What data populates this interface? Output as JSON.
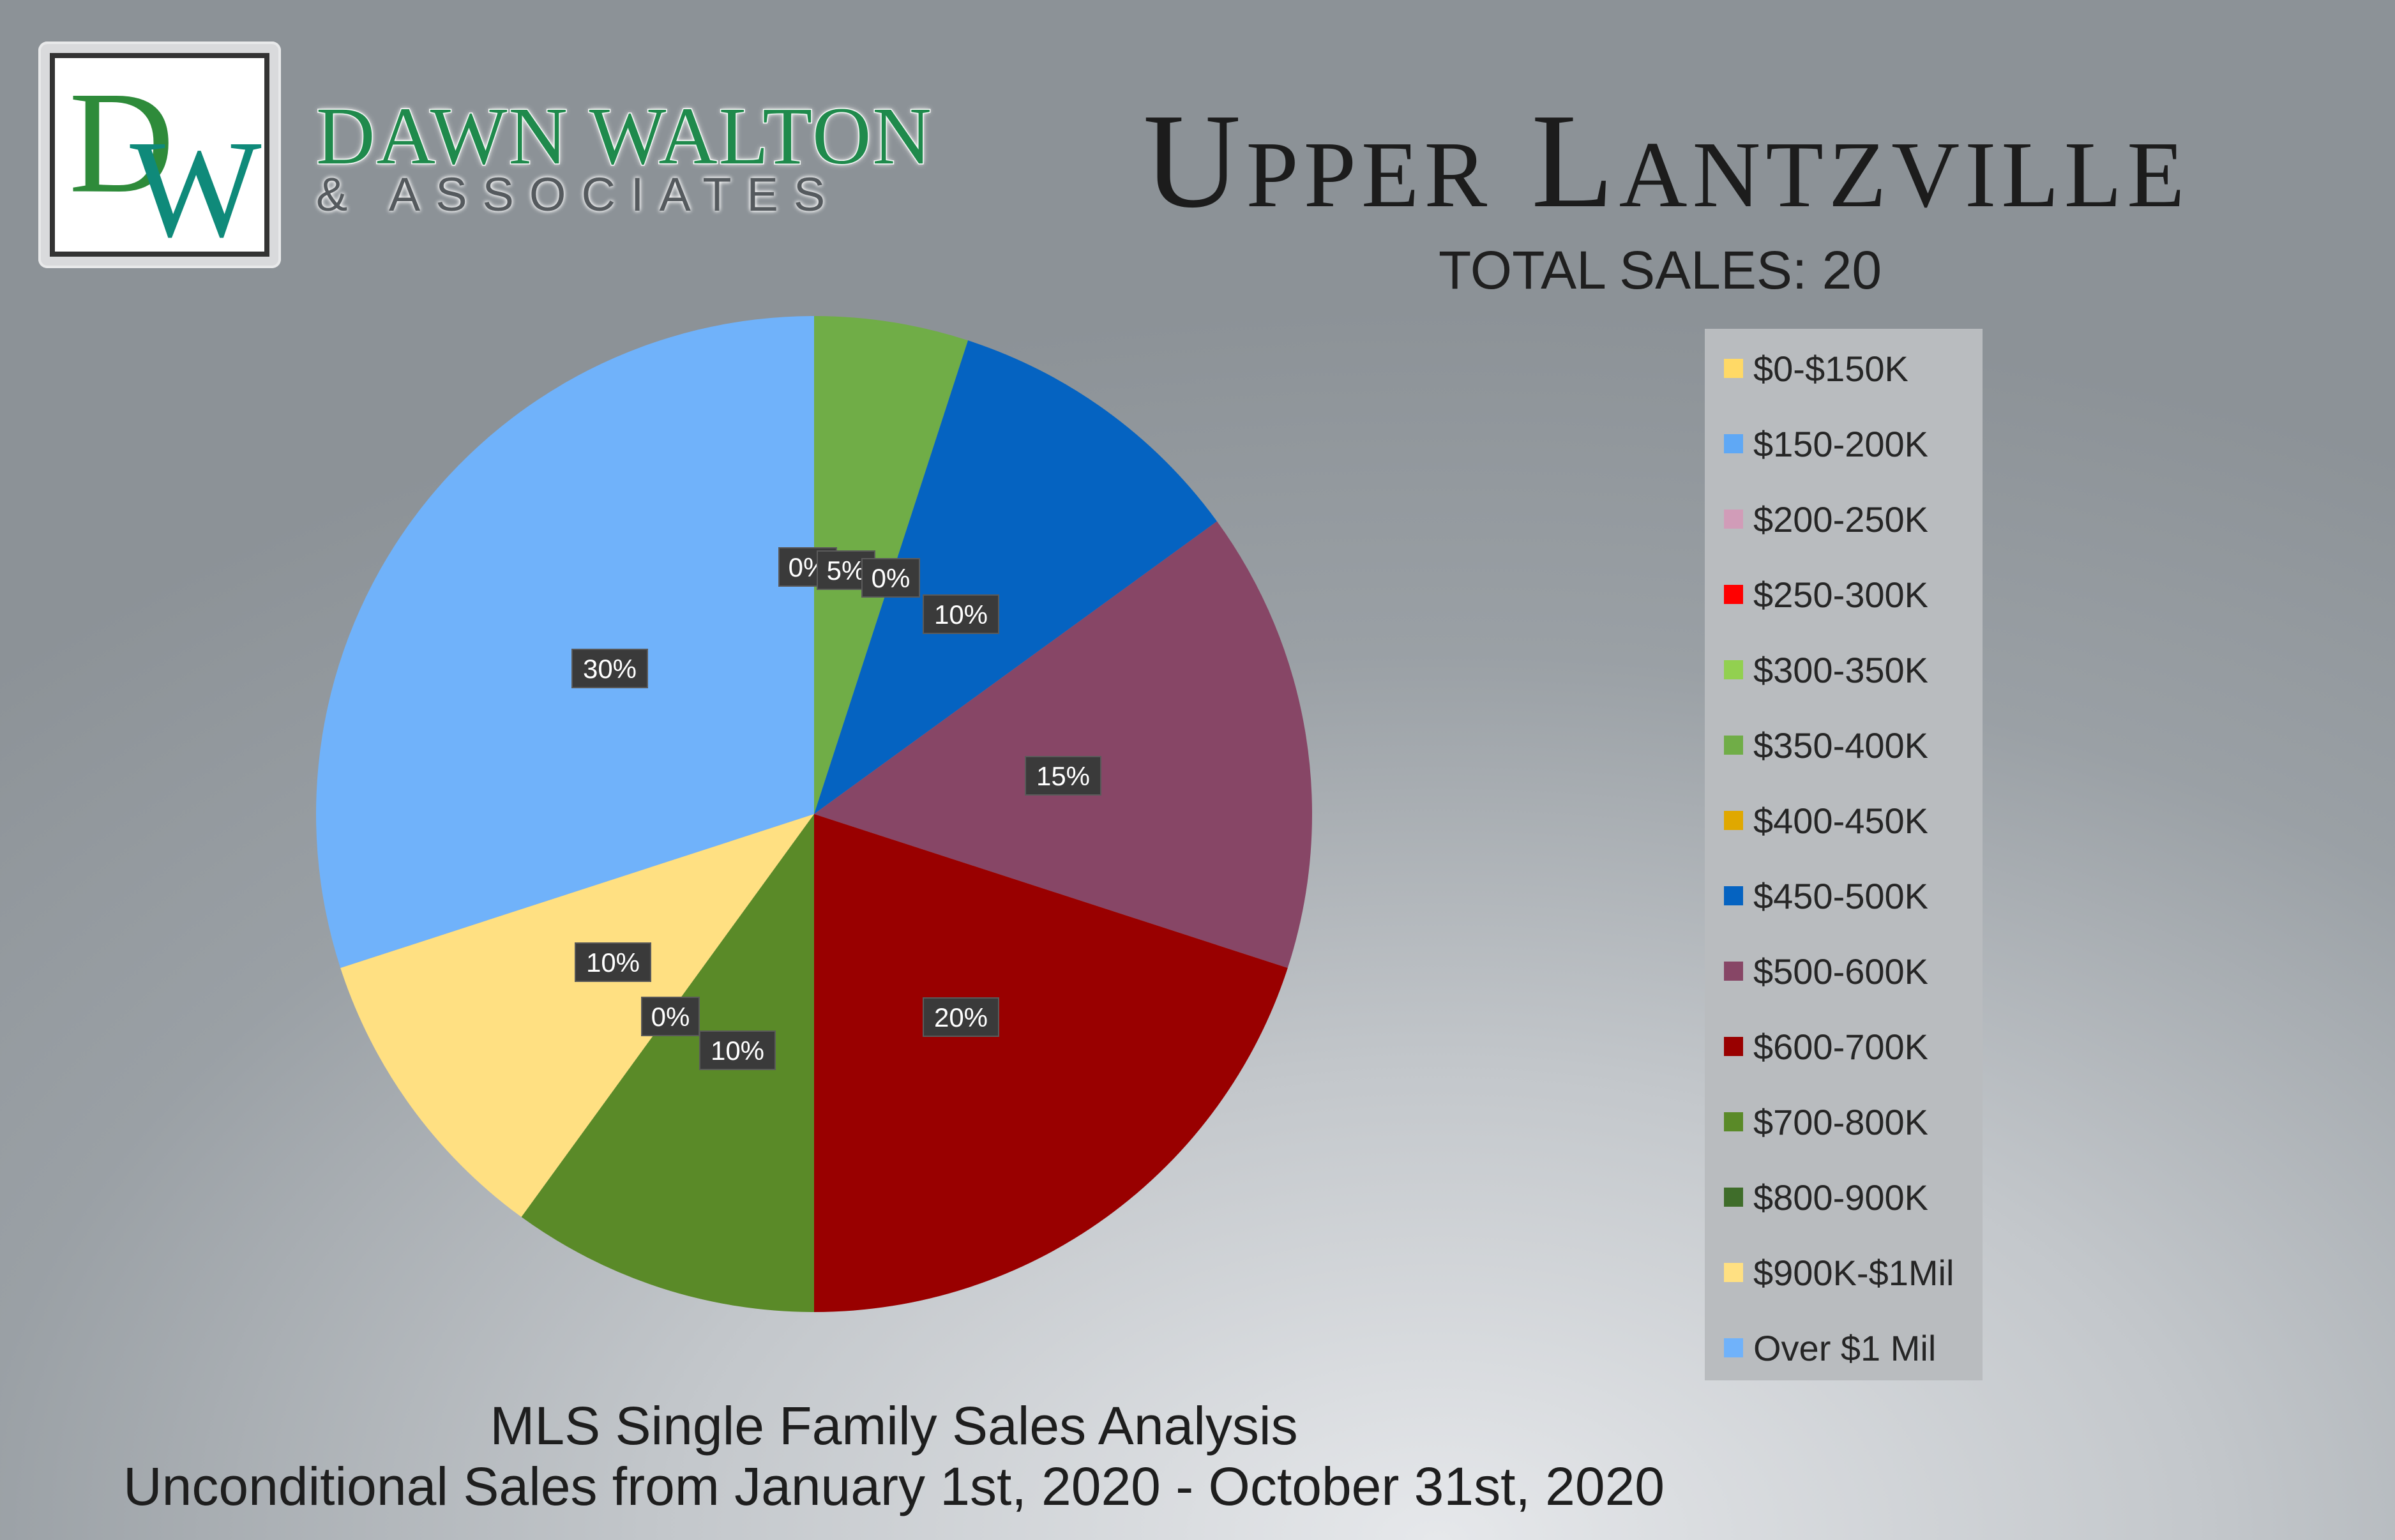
{
  "brand": {
    "monogram_d": "D",
    "monogram_w": "W",
    "name": "DAWN WALTON",
    "sub": "& ASSOCIATES"
  },
  "header": {
    "title": "Upper Lantzville",
    "total_sales": "TOTAL SALES: 20"
  },
  "footer": {
    "line1": "MLS Single Family Sales Analysis",
    "line2": "Unconditional Sales from January 1st, 2020 - October 31st, 2020"
  },
  "chart_data": {
    "type": "pie",
    "title": "Upper Lantzville",
    "subtitle": "TOTAL SALES: 20",
    "legend_position": "right",
    "slices": [
      {
        "label": "$0-$150K",
        "value": 0,
        "pct_label": "0%",
        "color": "#ffd966"
      },
      {
        "label": "$150-200K",
        "value": 0,
        "pct_label": "0%",
        "color": "#5fa8f5"
      },
      {
        "label": "$200-250K",
        "value": 0,
        "pct_label": "0%",
        "color": "#d19cb8"
      },
      {
        "label": "$250-300K",
        "value": 0,
        "pct_label": "0%",
        "color": "#ff0000"
      },
      {
        "label": "$300-350K",
        "value": 0,
        "pct_label": "0%",
        "color": "#92d050"
      },
      {
        "label": "$350-400K",
        "value": 5,
        "pct_label": "5%",
        "color": "#70ad47"
      },
      {
        "label": "$400-450K",
        "value": 0,
        "pct_label": "0%",
        "color": "#e0a800"
      },
      {
        "label": "$450-500K",
        "value": 10,
        "pct_label": "10%",
        "color": "#0563c1"
      },
      {
        "label": "$500-600K",
        "value": 15,
        "pct_label": "15%",
        "color": "#874666"
      },
      {
        "label": "$600-700K",
        "value": 20,
        "pct_label": "20%",
        "color": "#990000"
      },
      {
        "label": "$700-800K",
        "value": 10,
        "pct_label": "10%",
        "color": "#5a8a28"
      },
      {
        "label": "$800-900K",
        "value": 0,
        "pct_label": "0%",
        "color": "#3f6d2a"
      },
      {
        "label": "$900K-$1Mil",
        "value": 10,
        "pct_label": "10%",
        "color": "#ffe082"
      },
      {
        "label": "Over $1 Mil",
        "value": 30,
        "pct_label": "30%",
        "color": "#70b2fa"
      }
    ]
  }
}
